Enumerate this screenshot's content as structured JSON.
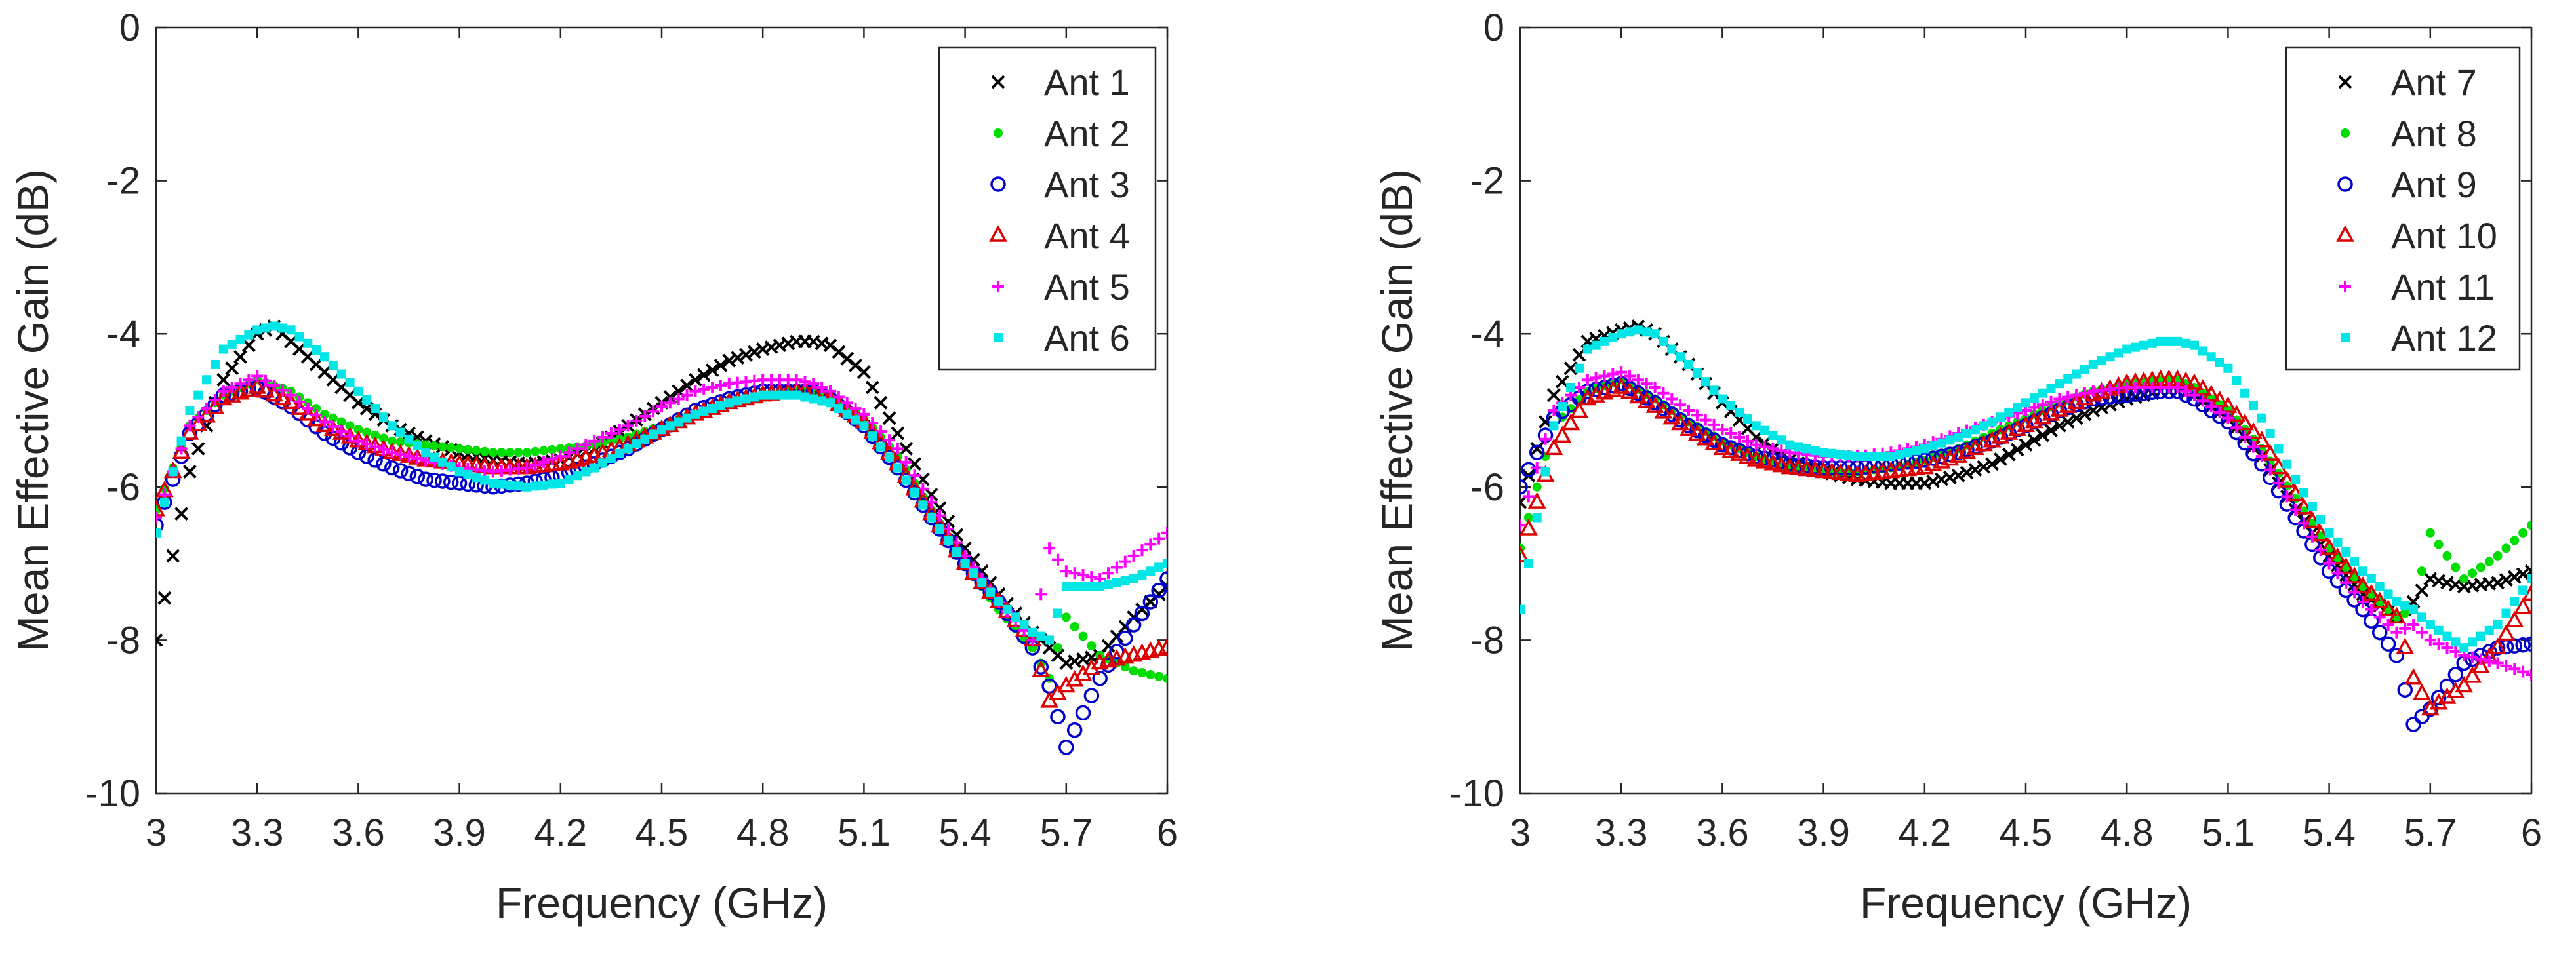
{
  "chart_data": [
    {
      "type": "scatter",
      "title": "",
      "xlabel": "Frequency (GHz)",
      "ylabel": "Mean Effective Gain (dB)",
      "xlim": [
        3,
        6
      ],
      "ylim": [
        -10,
        0
      ],
      "xticks": [
        "3",
        "3.3",
        "3.6",
        "3.9",
        "4.2",
        "4.5",
        "4.8",
        "5.1",
        "5.4",
        "5.7",
        "6"
      ],
      "yticks": [
        "0",
        "-2",
        "-4",
        "-6",
        "-8",
        "-10"
      ],
      "legend_position": "top-right",
      "grid": false,
      "series": [
        {
          "name": "Ant 1",
          "marker": "x",
          "color": "#000000",
          "x": [
            3.0,
            3.1,
            3.2,
            3.3,
            3.35,
            3.4,
            3.5,
            3.6,
            3.7,
            3.8,
            3.9,
            4.0,
            4.1,
            4.2,
            4.3,
            4.4,
            4.5,
            4.6,
            4.7,
            4.8,
            4.9,
            4.95,
            5.0,
            5.1,
            5.2,
            5.3,
            5.4,
            5.5,
            5.6,
            5.7,
            5.8,
            5.9,
            6.0
          ],
          "y": [
            -8.0,
            -5.8,
            -4.6,
            -4.0,
            -3.9,
            -4.1,
            -4.5,
            -4.9,
            -5.2,
            -5.4,
            -5.55,
            -5.65,
            -5.7,
            -5.65,
            -5.5,
            -5.2,
            -4.9,
            -4.6,
            -4.35,
            -4.2,
            -4.1,
            -4.1,
            -4.15,
            -4.5,
            -5.3,
            -6.1,
            -6.8,
            -7.4,
            -7.9,
            -8.3,
            -8.2,
            -7.7,
            -7.3
          ]
        },
        {
          "name": "Ant 2",
          "marker": "dot",
          "color": "#00dd00",
          "x": [
            3.0,
            3.1,
            3.2,
            3.3,
            3.4,
            3.5,
            3.6,
            3.7,
            3.8,
            3.9,
            4.0,
            4.1,
            4.2,
            4.3,
            4.4,
            4.5,
            4.6,
            4.7,
            4.8,
            4.9,
            4.95,
            5.0,
            5.1,
            5.2,
            5.3,
            5.4,
            5.5,
            5.6,
            5.65,
            5.7,
            5.8,
            5.9,
            6.0
          ],
          "y": [
            -6.3,
            -5.2,
            -4.8,
            -4.6,
            -4.75,
            -5.05,
            -5.25,
            -5.4,
            -5.45,
            -5.5,
            -5.55,
            -5.55,
            -5.5,
            -5.45,
            -5.35,
            -5.2,
            -5.05,
            -4.9,
            -4.8,
            -4.75,
            -4.75,
            -4.8,
            -5.1,
            -5.6,
            -6.3,
            -7.0,
            -7.6,
            -8.1,
            -8.5,
            -7.7,
            -8.2,
            -8.4,
            -8.5
          ]
        },
        {
          "name": "Ant 3",
          "marker": "o",
          "color": "#0000cc",
          "x": [
            3.0,
            3.1,
            3.2,
            3.3,
            3.4,
            3.5,
            3.6,
            3.7,
            3.8,
            3.9,
            4.0,
            4.1,
            4.2,
            4.3,
            4.4,
            4.5,
            4.6,
            4.7,
            4.8,
            4.9,
            4.95,
            5.0,
            5.1,
            5.2,
            5.3,
            5.4,
            5.5,
            5.6,
            5.65,
            5.7,
            5.8,
            5.9,
            6.0
          ],
          "y": [
            -6.5,
            -5.3,
            -4.8,
            -4.7,
            -4.95,
            -5.3,
            -5.55,
            -5.75,
            -5.9,
            -5.95,
            -6.0,
            -5.95,
            -5.85,
            -5.7,
            -5.5,
            -5.25,
            -5.0,
            -4.85,
            -4.75,
            -4.75,
            -4.75,
            -4.85,
            -5.2,
            -5.75,
            -6.4,
            -7.0,
            -7.5,
            -8.1,
            -8.6,
            -9.4,
            -8.5,
            -7.8,
            -7.2
          ]
        },
        {
          "name": "Ant 4",
          "marker": "triangle",
          "color": "#dd0000",
          "x": [
            3.0,
            3.1,
            3.2,
            3.3,
            3.4,
            3.5,
            3.6,
            3.7,
            3.8,
            3.9,
            4.0,
            4.1,
            4.2,
            4.3,
            4.4,
            4.5,
            4.6,
            4.7,
            4.8,
            4.9,
            4.95,
            5.0,
            5.1,
            5.2,
            5.3,
            5.4,
            5.5,
            5.6,
            5.65,
            5.7,
            5.8,
            5.9,
            6.0
          ],
          "y": [
            -6.3,
            -5.3,
            -4.85,
            -4.7,
            -4.9,
            -5.2,
            -5.4,
            -5.55,
            -5.65,
            -5.7,
            -5.75,
            -5.75,
            -5.7,
            -5.6,
            -5.45,
            -5.25,
            -5.05,
            -4.9,
            -4.8,
            -4.75,
            -4.75,
            -4.85,
            -5.15,
            -5.7,
            -6.35,
            -7.0,
            -7.5,
            -8.0,
            -8.8,
            -8.6,
            -8.3,
            -8.2,
            -8.1
          ]
        },
        {
          "name": "Ant 5",
          "marker": "plus",
          "color": "#ff00ff",
          "x": [
            3.0,
            3.1,
            3.2,
            3.3,
            3.4,
            3.5,
            3.6,
            3.7,
            3.8,
            3.9,
            4.0,
            4.1,
            4.2,
            4.3,
            4.4,
            4.5,
            4.6,
            4.7,
            4.8,
            4.9,
            4.95,
            5.0,
            5.1,
            5.2,
            5.3,
            5.4,
            5.5,
            5.6,
            5.65,
            5.7,
            5.8,
            5.9,
            6.0
          ],
          "y": [
            -6.4,
            -5.2,
            -4.75,
            -4.55,
            -4.8,
            -5.15,
            -5.4,
            -5.55,
            -5.65,
            -5.75,
            -5.8,
            -5.75,
            -5.6,
            -5.4,
            -5.2,
            -4.95,
            -4.75,
            -4.65,
            -4.6,
            -4.6,
            -4.65,
            -4.75,
            -5.05,
            -5.5,
            -6.2,
            -6.9,
            -7.5,
            -8.0,
            -6.8,
            -7.1,
            -7.2,
            -6.9,
            -6.6
          ]
        },
        {
          "name": "Ant 6",
          "marker": "square",
          "color": "#00e5e5",
          "x": [
            3.0,
            3.1,
            3.2,
            3.3,
            3.35,
            3.4,
            3.5,
            3.6,
            3.7,
            3.8,
            3.9,
            4.0,
            4.1,
            4.2,
            4.3,
            4.4,
            4.5,
            4.6,
            4.7,
            4.8,
            4.9,
            4.95,
            5.0,
            5.1,
            5.2,
            5.3,
            5.4,
            5.5,
            5.6,
            5.65,
            5.7,
            5.8,
            5.9,
            6.0
          ],
          "y": [
            -6.6,
            -5.0,
            -4.2,
            -3.95,
            -3.9,
            -3.95,
            -4.3,
            -4.75,
            -5.2,
            -5.55,
            -5.8,
            -5.95,
            -6.0,
            -5.95,
            -5.75,
            -5.5,
            -5.25,
            -5.05,
            -4.9,
            -4.8,
            -4.8,
            -4.85,
            -4.9,
            -5.2,
            -5.75,
            -6.4,
            -7.0,
            -7.5,
            -7.9,
            -8.0,
            -7.3,
            -7.3,
            -7.2,
            -7.0
          ]
        }
      ]
    },
    {
      "type": "scatter",
      "title": "",
      "xlabel": "Frequency (GHz)",
      "ylabel": "Mean Effective Gain (dB)",
      "xlim": [
        3,
        6
      ],
      "ylim": [
        -10,
        0
      ],
      "xticks": [
        "3",
        "3.3",
        "3.6",
        "3.9",
        "4.2",
        "4.5",
        "4.8",
        "5.1",
        "5.4",
        "5.7",
        "6"
      ],
      "yticks": [
        "0",
        "-2",
        "-4",
        "-6",
        "-8",
        "-10"
      ],
      "legend_position": "top-right",
      "grid": false,
      "series": [
        {
          "name": "Ant 7",
          "marker": "x",
          "color": "#000000",
          "x": [
            3.0,
            3.1,
            3.2,
            3.3,
            3.35,
            3.4,
            3.5,
            3.6,
            3.7,
            3.8,
            3.9,
            4.0,
            4.1,
            4.2,
            4.3,
            4.4,
            4.5,
            4.6,
            4.7,
            4.8,
            4.9,
            4.95,
            5.0,
            5.1,
            5.2,
            5.3,
            5.4,
            5.5,
            5.6,
            5.65,
            5.7,
            5.8,
            5.9,
            6.0
          ],
          "y": [
            -6.2,
            -4.8,
            -4.1,
            -3.95,
            -3.9,
            -4.0,
            -4.4,
            -4.9,
            -5.35,
            -5.65,
            -5.8,
            -5.9,
            -5.95,
            -5.95,
            -5.85,
            -5.7,
            -5.45,
            -5.2,
            -5.0,
            -4.85,
            -4.75,
            -4.75,
            -4.8,
            -5.1,
            -5.6,
            -6.3,
            -6.9,
            -7.4,
            -7.7,
            -7.5,
            -7.2,
            -7.3,
            -7.25,
            -7.1
          ]
        },
        {
          "name": "Ant 8",
          "marker": "dot",
          "color": "#00dd00",
          "x": [
            3.0,
            3.1,
            3.2,
            3.3,
            3.4,
            3.5,
            3.6,
            3.7,
            3.8,
            3.9,
            4.0,
            4.1,
            4.2,
            4.3,
            4.4,
            4.5,
            4.6,
            4.7,
            4.8,
            4.9,
            4.95,
            5.0,
            5.1,
            5.2,
            5.3,
            5.4,
            5.5,
            5.6,
            5.65,
            5.7,
            5.8,
            5.9,
            6.0
          ],
          "y": [
            -6.8,
            -5.2,
            -4.75,
            -4.6,
            -4.85,
            -5.15,
            -5.4,
            -5.6,
            -5.75,
            -5.8,
            -5.8,
            -5.75,
            -5.65,
            -5.5,
            -5.3,
            -5.1,
            -4.9,
            -4.75,
            -4.65,
            -4.6,
            -4.6,
            -4.7,
            -5.0,
            -5.5,
            -6.15,
            -6.8,
            -7.3,
            -7.7,
            -7.6,
            -6.6,
            -7.2,
            -6.9,
            -6.5
          ]
        },
        {
          "name": "Ant 9",
          "marker": "o",
          "color": "#0000cc",
          "x": [
            3.0,
            3.1,
            3.2,
            3.3,
            3.4,
            3.5,
            3.6,
            3.7,
            3.8,
            3.9,
            4.0,
            4.1,
            4.2,
            4.3,
            4.4,
            4.5,
            4.6,
            4.7,
            4.8,
            4.9,
            4.95,
            5.0,
            5.1,
            5.2,
            5.3,
            5.4,
            5.5,
            5.6,
            5.65,
            5.7,
            5.8,
            5.9,
            6.0
          ],
          "y": [
            -6.0,
            -5.1,
            -4.75,
            -4.65,
            -4.9,
            -5.2,
            -5.45,
            -5.6,
            -5.7,
            -5.75,
            -5.75,
            -5.7,
            -5.65,
            -5.55,
            -5.4,
            -5.2,
            -5.0,
            -4.85,
            -4.8,
            -4.75,
            -4.75,
            -4.85,
            -5.15,
            -5.7,
            -6.4,
            -7.1,
            -7.6,
            -8.2,
            -9.1,
            -8.9,
            -8.3,
            -8.1,
            -8.05
          ]
        },
        {
          "name": "Ant 10",
          "marker": "triangle",
          "color": "#dd0000",
          "x": [
            3.0,
            3.1,
            3.2,
            3.3,
            3.4,
            3.5,
            3.6,
            3.7,
            3.8,
            3.9,
            4.0,
            4.1,
            4.2,
            4.3,
            4.4,
            4.5,
            4.6,
            4.7,
            4.8,
            4.9,
            4.95,
            5.0,
            5.1,
            5.2,
            5.3,
            5.4,
            5.5,
            5.6,
            5.65,
            5.7,
            5.8,
            5.9,
            6.0
          ],
          "y": [
            -6.9,
            -5.5,
            -4.85,
            -4.7,
            -4.95,
            -5.25,
            -5.5,
            -5.65,
            -5.75,
            -5.8,
            -5.85,
            -5.8,
            -5.75,
            -5.6,
            -5.4,
            -5.2,
            -5.0,
            -4.8,
            -4.65,
            -4.6,
            -4.6,
            -4.65,
            -4.95,
            -5.4,
            -6.1,
            -6.8,
            -7.3,
            -7.7,
            -8.5,
            -8.9,
            -8.6,
            -8.1,
            -7.4
          ]
        },
        {
          "name": "Ant 11",
          "marker": "plus",
          "color": "#ff00ff",
          "x": [
            3.0,
            3.1,
            3.2,
            3.3,
            3.4,
            3.5,
            3.6,
            3.7,
            3.8,
            3.9,
            4.0,
            4.1,
            4.2,
            4.3,
            4.4,
            4.5,
            4.6,
            4.7,
            4.8,
            4.9,
            4.95,
            5.0,
            5.1,
            5.2,
            5.3,
            5.4,
            5.5,
            5.6,
            5.65,
            5.7,
            5.8,
            5.9,
            6.0
          ],
          "y": [
            -6.5,
            -5.0,
            -4.6,
            -4.5,
            -4.7,
            -5.0,
            -5.25,
            -5.45,
            -5.55,
            -5.6,
            -5.6,
            -5.55,
            -5.45,
            -5.3,
            -5.15,
            -5.0,
            -4.85,
            -4.75,
            -4.7,
            -4.7,
            -4.7,
            -4.8,
            -5.1,
            -5.6,
            -6.3,
            -7.0,
            -7.5,
            -7.9,
            -7.8,
            -8.0,
            -8.2,
            -8.3,
            -8.45
          ]
        },
        {
          "name": "Ant 12",
          "marker": "square",
          "color": "#00e5e5",
          "x": [
            3.0,
            3.1,
            3.2,
            3.3,
            3.35,
            3.4,
            3.5,
            3.6,
            3.7,
            3.8,
            3.9,
            4.0,
            4.1,
            4.2,
            4.3,
            4.4,
            4.5,
            4.6,
            4.7,
            4.8,
            4.9,
            4.95,
            5.0,
            5.1,
            5.2,
            5.3,
            5.4,
            5.5,
            5.6,
            5.65,
            5.7,
            5.8,
            5.9,
            6.0
          ],
          "y": [
            -7.6,
            -5.2,
            -4.2,
            -4.0,
            -3.95,
            -4.0,
            -4.4,
            -4.85,
            -5.2,
            -5.45,
            -5.55,
            -5.6,
            -5.6,
            -5.5,
            -5.35,
            -5.15,
            -4.9,
            -4.65,
            -4.4,
            -4.2,
            -4.1,
            -4.1,
            -4.15,
            -4.45,
            -5.1,
            -5.9,
            -6.6,
            -7.1,
            -7.5,
            -7.6,
            -7.8,
            -8.1,
            -7.8,
            -7.2
          ]
        }
      ]
    }
  ]
}
